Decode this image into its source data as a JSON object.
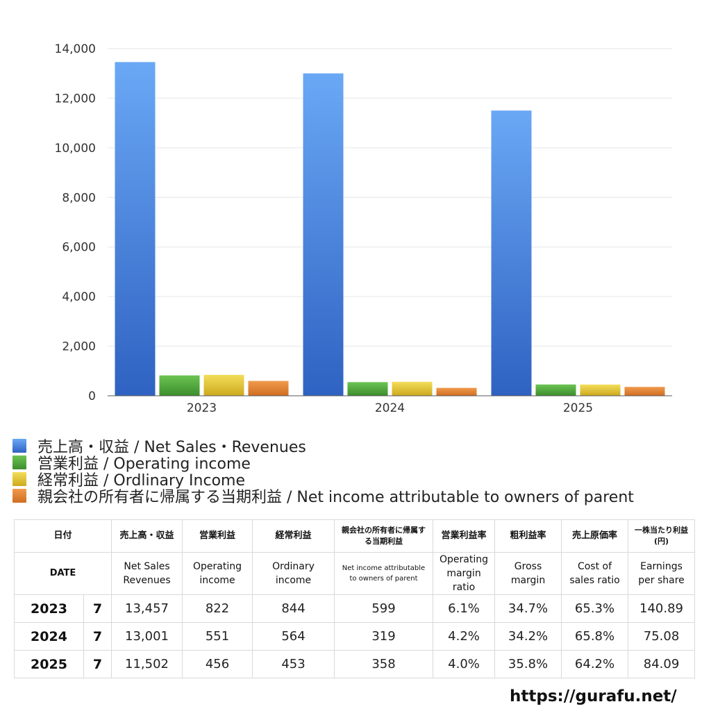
{
  "chart_data": {
    "type": "bar",
    "categories": [
      "2023",
      "2024",
      "2025"
    ],
    "series": [
      {
        "name": "売上高・収益 / Net Sales・Revenues",
        "values": [
          13457,
          13001,
          11502
        ],
        "color": "#4a88e0"
      },
      {
        "name": "営業利益 / Operating income",
        "values": [
          822,
          551,
          456
        ],
        "color": "#4fa83a"
      },
      {
        "name": "経常利益 / Ordlinary Income",
        "values": [
          844,
          564,
          453
        ],
        "color": "#e2c431"
      },
      {
        "name": "親会社の所有者に帰属する当期利益 / Net income attributable to owners of parent",
        "values": [
          599,
          319,
          358
        ],
        "color": "#e0843a"
      }
    ],
    "yticks": [
      "0",
      "2,000",
      "4,000",
      "6,000",
      "8,000",
      "10,000",
      "12,000",
      "14,000"
    ],
    "ylim": [
      0,
      14000
    ],
    "grid": true,
    "legend_position": "bottom-left"
  },
  "table": {
    "headers_jp": [
      "日付",
      "売上高・収益",
      "営業利益",
      "経常利益",
      "親会社の所有者に帰属する当期利益",
      "営業利益率",
      "粗利益率",
      "売上原価率",
      "一株当たり利益 (円)"
    ],
    "headers_en": [
      "DATE",
      "Net Sales Revenues",
      "Operating income",
      "Ordinary income",
      "Net income attributable to owners of parent",
      "Operating margin ratio",
      "Gross margin",
      "Cost of sales ratio",
      "Earnings per share"
    ],
    "rows": [
      {
        "year": "2023",
        "month": "7",
        "sales": "13,457",
        "op": "822",
        "ord": "844",
        "net": "599",
        "opm": "6.1%",
        "gross": "34.7%",
        "cost": "65.3%",
        "eps": "140.89"
      },
      {
        "year": "2024",
        "month": "7",
        "sales": "13,001",
        "op": "551",
        "ord": "564",
        "net": "319",
        "opm": "4.2%",
        "gross": "34.2%",
        "cost": "65.8%",
        "eps": "75.08"
      },
      {
        "year": "2025",
        "month": "7",
        "sales": "11,502",
        "op": "456",
        "ord": "453",
        "net": "358",
        "opm": "4.0%",
        "gross": "35.8%",
        "cost": "64.2%",
        "eps": "84.09"
      }
    ]
  },
  "footer": {
    "url": "https://gurafu.net/"
  }
}
